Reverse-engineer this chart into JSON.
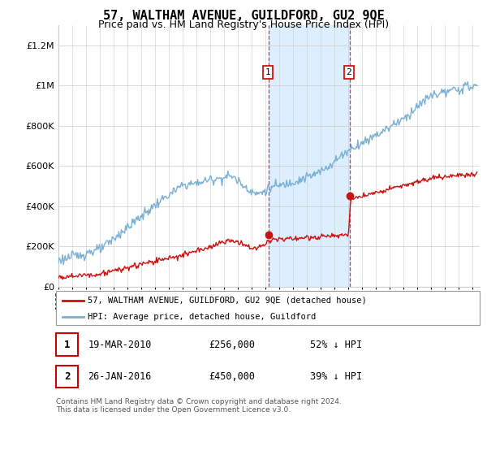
{
  "title": "57, WALTHAM AVENUE, GUILDFORD, GU2 9QE",
  "subtitle": "Price paid vs. HM Land Registry's House Price Index (HPI)",
  "red_label": "57, WALTHAM AVENUE, GUILDFORD, GU2 9QE (detached house)",
  "blue_label": "HPI: Average price, detached house, Guildford",
  "sale1_date": "19-MAR-2010",
  "sale1_price": 256000,
  "sale1_label": "52% ↓ HPI",
  "sale1_year": 2010.21,
  "sale2_date": "26-JAN-2016",
  "sale2_price": 450000,
  "sale2_label": "39% ↓ HPI",
  "sale2_year": 2016.07,
  "ylim_max": 1300000,
  "xmin": 1995,
  "xmax": 2025.5,
  "title_fontsize": 11,
  "subtitle_fontsize": 9,
  "footer_text": "Contains HM Land Registry data © Crown copyright and database right 2024.\nThis data is licensed under the Open Government Licence v3.0.",
  "red_color": "#cc1111",
  "blue_color": "#7ab0d4",
  "shade_color": "#ddeeff",
  "marker_color": "#cc1111",
  "dashed_color": "#cc1111",
  "grid_color": "#cccccc",
  "bg_color": "#ffffff"
}
